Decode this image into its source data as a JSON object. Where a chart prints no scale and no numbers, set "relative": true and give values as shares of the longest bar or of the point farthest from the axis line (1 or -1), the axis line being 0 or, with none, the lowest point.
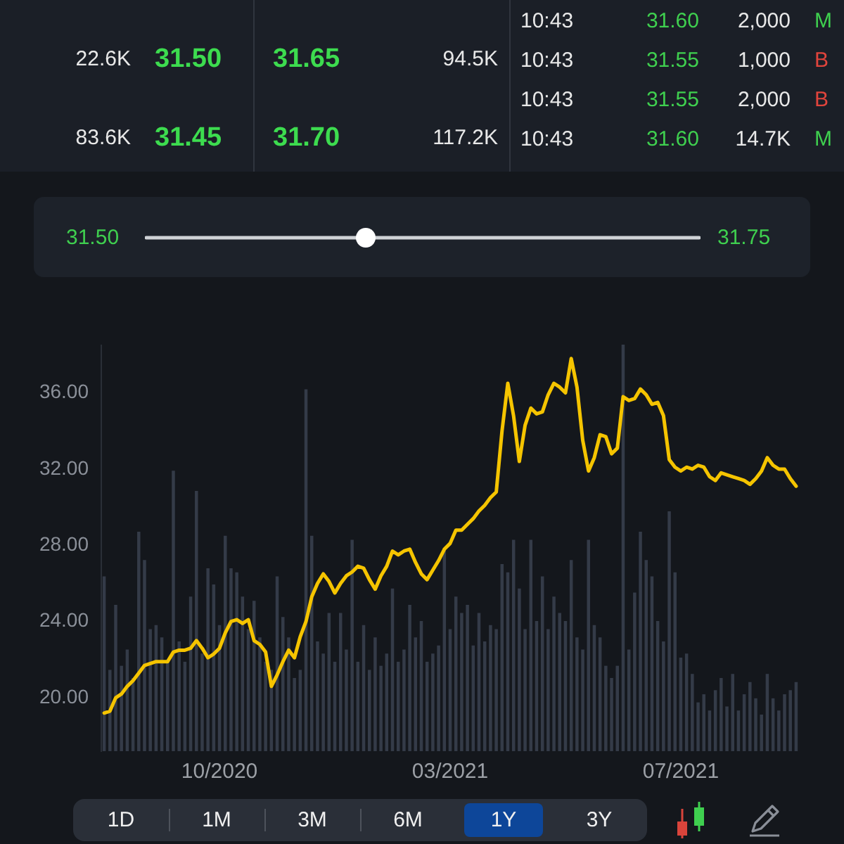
{
  "chart_data": [
    {
      "type": "other",
      "annotations": [
        "22.6K",
        "31.50",
        "31.65",
        "94.5K",
        "83.6K",
        "31.45",
        "31.70",
        "117.2K"
      ],
      "colors": [
        "#e8e8e8",
        "#3ddc4f",
        "#3ddc4f",
        "#e8e8e8",
        "#e8e8e8",
        "#3ddc4f",
        "#3ddc4f",
        "#e8e8e8"
      ]
    },
    {
      "type": "other",
      "annotations": [
        "10:43",
        "31.60",
        "2,000",
        "M",
        "10:43",
        "31.55",
        "1,000",
        "B",
        "10:43",
        "31.55",
        "2,000",
        "B",
        "10:43",
        "31.60",
        "14.7K",
        "M"
      ],
      "colors": [
        "#e8e8e8",
        "#3fcf4f",
        "#e8e8e8",
        "#3fcf4f",
        "#e8e8e8",
        "#3fcf4f",
        "#e8e8e8",
        "#e0443c",
        "#e8e8e8",
        "#3fcf4f",
        "#e8e8e8",
        "#e0443c",
        "#e8e8e8",
        "#3fcf4f",
        "#e8e8e8",
        "#3fcf4f"
      ]
    },
    {
      "type": "other",
      "annotations": [
        "31.50",
        "31.75"
      ],
      "colors": [
        "#3fcf4f",
        "#3fcf4f"
      ]
    },
    {
      "type": "line",
      "categories": [
        null,
        null,
        null,
        null,
        null,
        null,
        null,
        null,
        null,
        null,
        null,
        null,
        null,
        null,
        null,
        null,
        null,
        null,
        null,
        null,
        "10/2020",
        null,
        null,
        null,
        null,
        null,
        null,
        null,
        null,
        null,
        null,
        null,
        null,
        null,
        null,
        null,
        null,
        null,
        null,
        null,
        null,
        null,
        null,
        null,
        null,
        null,
        null,
        null,
        null,
        null,
        null,
        null,
        null,
        null,
        null,
        null,
        null,
        null,
        null,
        null,
        "03/2021",
        null,
        null,
        null,
        null,
        null,
        null,
        null,
        null,
        null,
        null,
        null,
        null,
        null,
        null,
        null,
        null,
        null,
        null,
        null,
        null,
        null,
        null,
        null,
        null,
        null,
        null,
        null,
        null,
        null,
        null,
        null,
        null,
        null,
        null,
        null,
        null,
        null,
        null,
        null,
        "07/2021",
        null,
        null,
        null,
        null,
        null,
        null,
        null,
        null,
        null,
        null,
        null,
        null,
        null,
        null,
        null,
        null,
        null,
        null,
        null,
        null
      ],
      "values": [
        19.2,
        19.3,
        20.0,
        20.2,
        20.6,
        20.9,
        21.3,
        21.7,
        21.8,
        21.9,
        21.9,
        21.9,
        22.4,
        22.5,
        22.5,
        22.6,
        23.0,
        22.6,
        22.1,
        22.3,
        22.6,
        23.4,
        24.0,
        24.1,
        23.9,
        24.1,
        23.0,
        22.8,
        22.4,
        20.6,
        21.2,
        21.9,
        22.5,
        22.1,
        23.2,
        24.0,
        25.3,
        26.0,
        26.5,
        26.1,
        25.5,
        26.0,
        26.4,
        26.6,
        26.9,
        26.8,
        26.2,
        25.7,
        26.4,
        26.9,
        27.7,
        27.5,
        27.7,
        27.8,
        27.1,
        26.5,
        26.2,
        26.7,
        27.2,
        27.8,
        28.1,
        28.8,
        28.8,
        29.1,
        29.4,
        29.8,
        30.1,
        30.5,
        30.8,
        34.0,
        36.5,
        34.8,
        32.4,
        34.3,
        35.2,
        34.9,
        35.0,
        35.9,
        36.5,
        36.3,
        36.0,
        37.8,
        36.3,
        33.5,
        31.9,
        32.6,
        33.8,
        33.7,
        32.8,
        33.1,
        35.8,
        35.6,
        35.7,
        36.2,
        35.9,
        35.4,
        35.5,
        34.8,
        32.5,
        32.1,
        31.9,
        32.1,
        32.0,
        32.2,
        32.1,
        31.6,
        31.4,
        31.8,
        31.7,
        31.6,
        31.5,
        31.4,
        31.2,
        31.5,
        31.9,
        32.6,
        32.2,
        32.0,
        32.0,
        31.5,
        31.1
      ],
      "color": "#f5c400",
      "ylim": [
        17.2,
        38.5
      ],
      "yticks": [
        {
          "value": 20,
          "label": "20.00"
        },
        {
          "value": 24,
          "label": "24.00"
        },
        {
          "value": 28,
          "label": "28.00"
        },
        {
          "value": 32,
          "label": "32.00"
        },
        {
          "value": 36,
          "label": "36.00"
        }
      ],
      "marker": "none",
      "line_style": "solid"
    },
    {
      "type": "bar",
      "relative": true,
      "categories": [
        null,
        null,
        null,
        null,
        null,
        null,
        null,
        null,
        null,
        null,
        null,
        null,
        null,
        null,
        null,
        null,
        null,
        null,
        null,
        null,
        null,
        null,
        null,
        null,
        null,
        null,
        null,
        null,
        null,
        null,
        null,
        null,
        null,
        null,
        null,
        null,
        null,
        null,
        null,
        null,
        null,
        null,
        null,
        null,
        null,
        null,
        null,
        null,
        null,
        null,
        null,
        null,
        null,
        null,
        null,
        null,
        null,
        null,
        null,
        null,
        null,
        null,
        null,
        null,
        null,
        null,
        null,
        null,
        null,
        null,
        null,
        null,
        null,
        null,
        null,
        null,
        null,
        null,
        null,
        null,
        null,
        null,
        null,
        null,
        null,
        null,
        null,
        null,
        null,
        null,
        null,
        null,
        null,
        null,
        null,
        null,
        null,
        null,
        null,
        null,
        null,
        null,
        null,
        null,
        null,
        null,
        null,
        null,
        null,
        null,
        null,
        null,
        null,
        null,
        null,
        null,
        null,
        null,
        null,
        null,
        null
      ],
      "values": [
        0.43,
        0.2,
        0.36,
        0.21,
        0.25,
        0.18,
        0.54,
        0.47,
        0.3,
        0.31,
        0.28,
        0.22,
        0.69,
        0.27,
        0.22,
        0.38,
        0.64,
        0.24,
        0.45,
        0.41,
        0.31,
        0.53,
        0.45,
        0.44,
        0.38,
        0.3,
        0.37,
        0.28,
        0.22,
        0.2,
        0.43,
        0.33,
        0.28,
        0.18,
        0.2,
        0.89,
        0.53,
        0.27,
        0.24,
        0.34,
        0.22,
        0.34,
        0.25,
        0.52,
        0.22,
        0.31,
        0.2,
        0.28,
        0.21,
        0.24,
        0.4,
        0.22,
        0.25,
        0.36,
        0.28,
        0.32,
        0.22,
        0.24,
        0.26,
        0.5,
        0.3,
        0.38,
        0.34,
        0.36,
        0.26,
        0.34,
        0.27,
        0.31,
        0.3,
        0.46,
        0.44,
        0.52,
        0.4,
        0.3,
        0.52,
        0.32,
        0.43,
        0.3,
        0.38,
        0.34,
        0.32,
        0.47,
        0.28,
        0.25,
        0.52,
        0.31,
        0.28,
        0.21,
        0.18,
        0.21,
        1,
        0.25,
        0.39,
        0.54,
        0.47,
        0.43,
        0.32,
        0.27,
        0.59,
        0.44,
        0.23,
        0.24,
        0.19,
        0.12,
        0.14,
        0.1,
        0.15,
        0.18,
        0.11,
        0.19,
        0.1,
        0.14,
        0.17,
        0.13,
        0.09,
        0.19,
        0.13,
        0.1,
        0.14,
        0.15,
        0.17
      ],
      "color": "#343b48"
    },
    {
      "type": "other",
      "annotations": [
        "1D",
        "1M",
        "3M",
        "6M",
        "1Y",
        "3Y"
      ]
    }
  ]
}
